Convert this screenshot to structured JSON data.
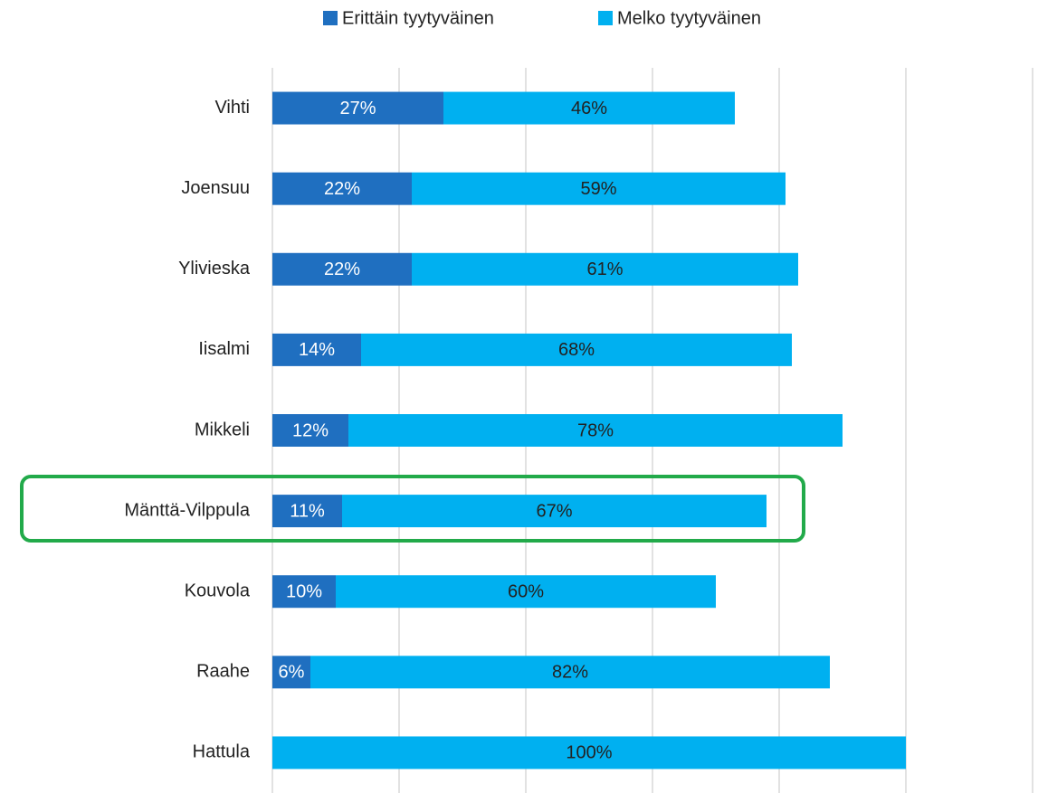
{
  "chart_data": {
    "type": "stacked_barh",
    "categories": [
      "Vihti",
      "Joensuu",
      "Ylivieska",
      "Iisalmi",
      "Mikkeli",
      "Mänttä-Vilppula",
      "Kouvola",
      "Raahe",
      "Hattula"
    ],
    "series": [
      {
        "name": "Erittäin tyytyväinen",
        "color": "#1f6fc0",
        "values": [
          27,
          22,
          22,
          14,
          12,
          11,
          10,
          6,
          0
        ],
        "value_labels": [
          "27%",
          "22%",
          "22%",
          "14%",
          "12%",
          "11%",
          "10%",
          "6%",
          "%"
        ]
      },
      {
        "name": "Melko tyytyväinen",
        "color": "#00b0f0",
        "values": [
          46,
          59,
          61,
          68,
          78,
          67,
          60,
          82,
          100
        ],
        "value_labels": [
          "46%",
          "59%",
          "61%",
          "68%",
          "78%",
          "67%",
          "60%",
          "82%",
          "100%"
        ]
      }
    ],
    "xlim": [
      0,
      120
    ],
    "xticks": [
      0,
      20,
      40,
      60,
      80,
      100,
      120
    ],
    "grid": true,
    "legend": "top"
  }
}
